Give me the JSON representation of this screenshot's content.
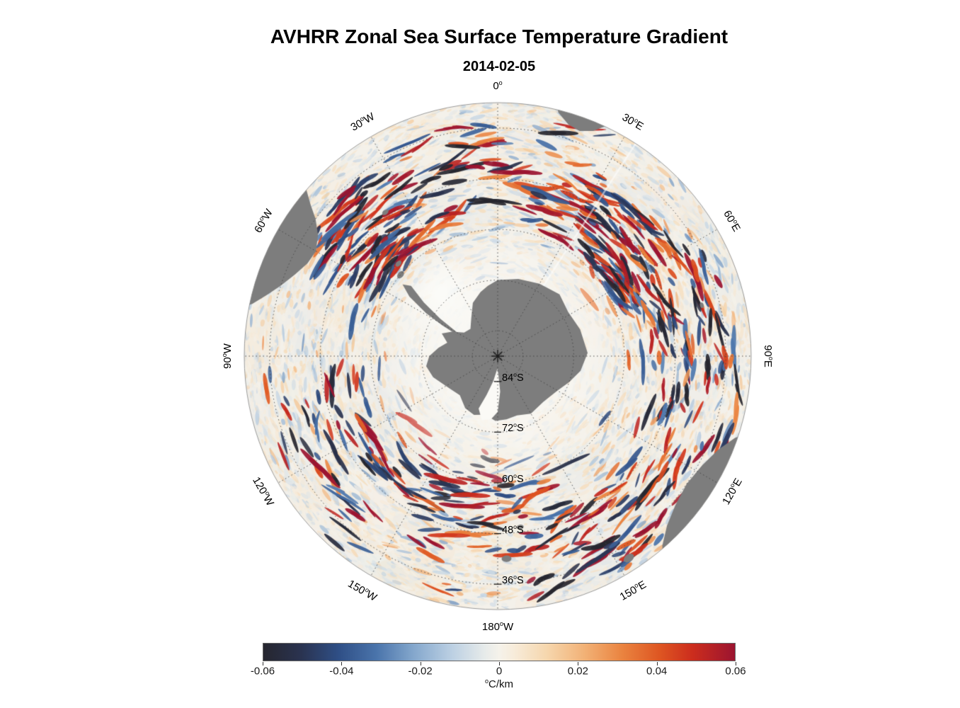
{
  "figure": {
    "title": "AVHRR Zonal Sea Surface Temperature Gradient",
    "subtitle": "2014-02-05"
  },
  "chart_data": {
    "type": "heatmap",
    "projection": "south-polar-stereographic",
    "title": "AVHRR Zonal Sea Surface Temperature Gradient",
    "subtitle_date": "2014-02-05",
    "field": "zonal sea surface temperature gradient",
    "units": "°C/km",
    "value_range": [
      -0.06,
      0.06
    ],
    "grid": "dotted graticule, 30-degree meridians, 12-degree latitude rings",
    "land_color": "#7d7d7d",
    "colorbar": {
      "orientation": "horizontal",
      "position": "bottom",
      "label": "°C/km",
      "tick_labels": [
        "-0.06",
        "-0.04",
        "-0.02",
        "0",
        "0.02",
        "0.04",
        "0.06"
      ],
      "tick_values": [
        -0.06,
        -0.04,
        -0.02,
        0,
        0.02,
        0.04,
        0.06
      ],
      "colormap_stops": [
        {
          "pos": 0.0,
          "color": "#26262f"
        },
        {
          "pos": 0.08,
          "color": "#2a3350"
        },
        {
          "pos": 0.16,
          "color": "#2f4f86"
        },
        {
          "pos": 0.24,
          "color": "#4a74ab"
        },
        {
          "pos": 0.32,
          "color": "#85a8cd"
        },
        {
          "pos": 0.4,
          "color": "#bcd0e3"
        },
        {
          "pos": 0.47,
          "color": "#e7ebea"
        },
        {
          "pos": 0.5,
          "color": "#f5f2ea"
        },
        {
          "pos": 0.53,
          "color": "#f7ecdb"
        },
        {
          "pos": 0.6,
          "color": "#f6d7ae"
        },
        {
          "pos": 0.68,
          "color": "#f2b277"
        },
        {
          "pos": 0.76,
          "color": "#ea8440"
        },
        {
          "pos": 0.84,
          "color": "#de5622"
        },
        {
          "pos": 0.91,
          "color": "#cc2d1d"
        },
        {
          "pos": 1.0,
          "color": "#9b1430"
        }
      ]
    },
    "longitude_labels": [
      {
        "label": "0°",
        "angle_deg": 0
      },
      {
        "label": "30°E",
        "angle_deg": 30
      },
      {
        "label": "60°E",
        "angle_deg": 60
      },
      {
        "label": "90°E",
        "angle_deg": 90
      },
      {
        "label": "120°E",
        "angle_deg": 120
      },
      {
        "label": "150°E",
        "angle_deg": 150
      },
      {
        "label": "180°W",
        "angle_deg": 180
      },
      {
        "label": "150°W",
        "angle_deg": 210
      },
      {
        "label": "120°W",
        "angle_deg": 240
      },
      {
        "label": "90°W",
        "angle_deg": 270
      },
      {
        "label": "60°W",
        "angle_deg": 300
      },
      {
        "label": "30°W",
        "angle_deg": 330
      }
    ],
    "latitude_labels": [
      {
        "label": "84°S",
        "lat_deg_south": 84
      },
      {
        "label": "72°S",
        "lat_deg_south": 72
      },
      {
        "label": "60°S",
        "lat_deg_south": 60
      },
      {
        "label": "48°S",
        "lat_deg_south": 48
      },
      {
        "label": "36°S",
        "lat_deg_south": 36
      }
    ],
    "latitude_ring_degrees": [
      84,
      72,
      60,
      48,
      36
    ],
    "land_features": {
      "antarctica": [
        [
          0,
          0.3
        ],
        [
          15,
          0.315
        ],
        [
          30,
          0.33
        ],
        [
          45,
          0.345
        ],
        [
          58,
          0.328
        ],
        [
          72,
          0.342
        ],
        [
          88,
          0.355
        ],
        [
          100,
          0.332
        ],
        [
          110,
          0.3
        ],
        [
          120,
          0.272
        ],
        [
          135,
          0.255
        ],
        [
          150,
          0.262
        ],
        [
          162,
          0.246
        ],
        [
          172,
          0.252
        ],
        [
          182,
          0.256
        ],
        [
          192,
          0.236
        ],
        [
          202,
          0.25
        ],
        [
          212,
          0.242
        ],
        [
          224,
          0.215
        ],
        [
          238,
          0.232
        ],
        [
          252,
          0.268
        ],
        [
          262,
          0.285
        ],
        [
          270,
          0.27
        ],
        [
          278,
          0.236
        ],
        [
          285,
          0.206
        ],
        [
          292,
          0.238
        ],
        [
          298,
          0.205
        ],
        [
          305,
          0.162
        ],
        [
          315,
          0.152
        ],
        [
          325,
          0.182
        ],
        [
          335,
          0.232
        ],
        [
          345,
          0.262
        ],
        [
          352,
          0.28
        ]
      ],
      "peninsula": [
        [
          296,
          0.14
        ],
        [
          299,
          0.25
        ],
        [
          301,
          0.33
        ],
        [
          304,
          0.42
        ],
        [
          307,
          0.47
        ],
        [
          309,
          0.44
        ],
        [
          306,
          0.36
        ],
        [
          303,
          0.27
        ],
        [
          300,
          0.18
        ],
        [
          297,
          0.12
        ]
      ],
      "ross_ice_shelf_white": [
        [
          182,
          0.05
        ],
        [
          190,
          0.1
        ],
        [
          196,
          0.16
        ],
        [
          200,
          0.22
        ],
        [
          194,
          0.26
        ],
        [
          186,
          0.25
        ],
        [
          180,
          0.22
        ],
        [
          176,
          0.14
        ],
        [
          178,
          0.07
        ]
      ],
      "south_america": [
        [
          280,
          1.06
        ],
        [
          282,
          0.99
        ],
        [
          285,
          0.94
        ],
        [
          288,
          0.9
        ],
        [
          292,
          0.862
        ],
        [
          296,
          0.835
        ],
        [
          300,
          0.828
        ],
        [
          304,
          0.855
        ],
        [
          307,
          0.9
        ],
        [
          309,
          0.95
        ],
        [
          311,
          1.0
        ],
        [
          313,
          1.06
        ]
      ],
      "africa": [
        [
          12,
          1.06
        ],
        [
          14,
          0.99
        ],
        [
          17,
          0.955
        ],
        [
          20,
          0.945
        ],
        [
          23,
          0.965
        ],
        [
          25,
          1.0
        ],
        [
          27,
          1.06
        ]
      ],
      "australia": [
        [
          106,
          1.06
        ],
        [
          109,
          0.99
        ],
        [
          113,
          0.945
        ],
        [
          118,
          0.915
        ],
        [
          124,
          0.9
        ],
        [
          130,
          0.915
        ],
        [
          135,
          0.945
        ],
        [
          139,
          0.99
        ],
        [
          142,
          1.06
        ]
      ],
      "islands": [
        [
          310,
          0.5,
          6
        ],
        [
          313,
          0.535,
          5
        ],
        [
          322,
          0.72,
          5
        ],
        [
          147,
          0.95,
          8
        ],
        [
          172.5,
          0.68,
          5
        ],
        [
          177.5,
          0.8,
          7
        ],
        [
          76,
          0.83,
          4
        ]
      ]
    }
  }
}
